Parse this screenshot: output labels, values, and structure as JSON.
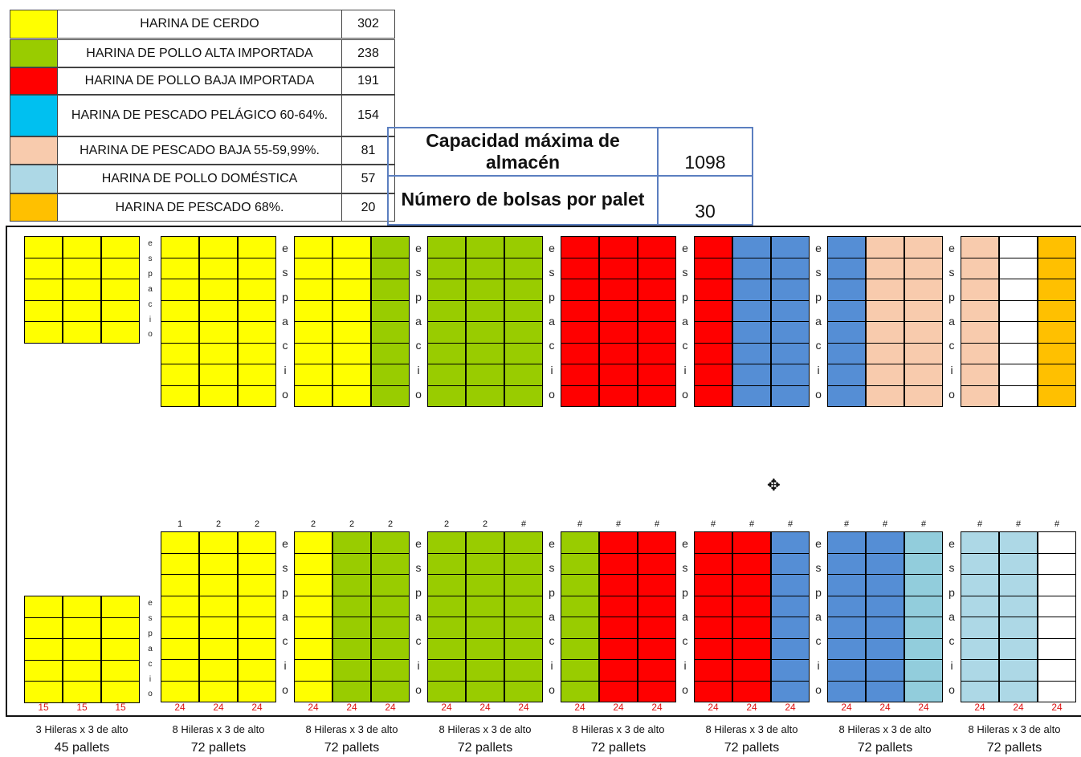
{
  "legend": [
    {
      "name": "HARINA DE CERDO",
      "value": "302",
      "color": "#ffff00"
    },
    {
      "name": "HARINA DE POLLO ALTA IMPORTADA",
      "value": "238",
      "color": "#99cc00"
    },
    {
      "name": "HARINA DE POLLO BAJA IMPORTADA",
      "value": "191",
      "color": "#ff0000"
    },
    {
      "name": "HARINA DE PESCADO PELÁGICO 60-64%.",
      "value": "154",
      "color": "#00c0f0"
    },
    {
      "name": "HARINA DE PESCADO BAJA 55-59,99%.",
      "value": "81",
      "color": "#f8cbad"
    },
    {
      "name": "HARINA DE POLLO DOMÉSTICA",
      "value": "57",
      "color": "#add8e6"
    },
    {
      "name": "HARINA DE PESCADO 68%.",
      "value": "20",
      "color": "#ffc000"
    }
  ],
  "capacity": {
    "max_label": "Capacidad máxima de almacén",
    "max_value": "1098",
    "bags_label": "Número de bolsas por palet",
    "bags_value": "30"
  },
  "space_label": "espacio",
  "colors": {
    "Y": "#ffff00",
    "G": "#99cc00",
    "R": "#ff0000",
    "B": "#558ed5",
    "P": "#f8cbad",
    "L": "#add8e6",
    "T": "#92cddc",
    "O": "#ffc000",
    "W": "#ffffff"
  },
  "top_layout": {
    "first_block": [
      "Y",
      "Y",
      "Y"
    ],
    "blocks": [
      [
        "Y",
        "Y",
        "Y"
      ],
      [
        "Y",
        "Y",
        "G"
      ],
      [
        "G",
        "G",
        "G"
      ],
      [
        "R",
        "R",
        "R"
      ],
      [
        "R",
        "B",
        "B"
      ],
      [
        "B",
        "P",
        "P"
      ],
      [
        "P",
        "W",
        "O"
      ]
    ]
  },
  "bottom_layout": {
    "first_block": [
      "Y",
      "Y",
      "Y"
    ],
    "blocks": [
      [
        "Y",
        "Y",
        "Y"
      ],
      [
        "Y",
        "G",
        "G"
      ],
      [
        "G",
        "G",
        "G"
      ],
      [
        "G",
        "R",
        "R"
      ],
      [
        "R",
        "R",
        "B"
      ],
      [
        "B",
        "B",
        "T"
      ],
      [
        "L",
        "L",
        "W"
      ]
    ]
  },
  "top_counts": [
    "1",
    "2",
    "2",
    "2",
    "2",
    "2",
    "2",
    "2",
    "#",
    "#",
    "#",
    "#",
    "#",
    "#",
    "#",
    "#",
    "#",
    "#",
    "#",
    "#",
    "#"
  ],
  "bottom_counts": [
    "15",
    "15",
    "15",
    "24",
    "24",
    "24",
    "24",
    "24",
    "24",
    "24",
    "24",
    "24",
    "24",
    "24",
    "24",
    "24",
    "24",
    "24",
    "24",
    "24",
    "24",
    "24",
    "24",
    "24"
  ],
  "footers": [
    {
      "rows": "3 Hileras x 3 de alto",
      "pallets": "45 pallets"
    },
    {
      "rows": "8 Hileras x 3 de alto",
      "pallets": "72 pallets"
    },
    {
      "rows": "8 Hileras x 3 de alto",
      "pallets": "72 pallets"
    },
    {
      "rows": "8 Hileras x 3 de alto",
      "pallets": "72 pallets"
    },
    {
      "rows": "8 Hileras x 3 de alto",
      "pallets": "72 pallets"
    },
    {
      "rows": "8 Hileras x 3 de alto",
      "pallets": "72 pallets"
    },
    {
      "rows": "8 Hileras x 3 de alto",
      "pallets": "72 pallets"
    },
    {
      "rows": "8 Hileras x 3 de alto",
      "pallets": "72 pallets"
    }
  ],
  "icons": {
    "cursor": "cross-cursor-icon"
  }
}
